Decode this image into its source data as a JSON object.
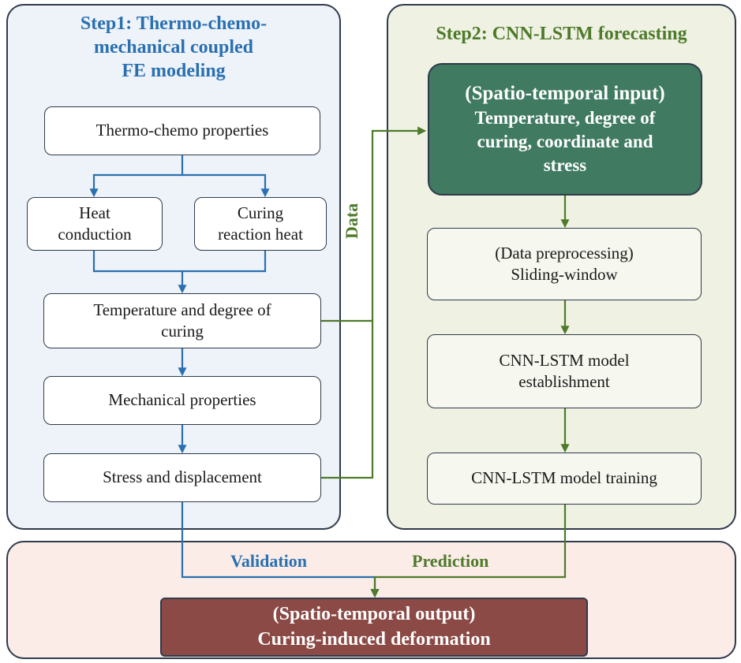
{
  "step1": {
    "title_lines": [
      "Step1: Thermo-chemo-",
      "mechanical coupled",
      "FE modeling"
    ],
    "boxes": {
      "props": [
        "Thermo-chemo properties"
      ],
      "heat": [
        "Heat",
        "conduction"
      ],
      "cure": [
        "Curing",
        "reaction heat"
      ],
      "temp": [
        "Temperature and degree of",
        "curing"
      ],
      "mech": [
        "Mechanical properties"
      ],
      "stress": [
        "Stress and displacement"
      ]
    }
  },
  "step2": {
    "title": "Step2: CNN-LSTM forecasting",
    "boxes": {
      "input": [
        "(Spatio-temporal input)",
        "Temperature, degree of",
        "curing, coordinate and",
        "stress"
      ],
      "pre": [
        "(Data preprocessing)",
        "Sliding-window"
      ],
      "est": [
        "CNN-LSTM model",
        "establishment"
      ],
      "train": [
        "CNN-LSTM model training"
      ]
    }
  },
  "output": {
    "lines": [
      "(Spatio-temporal output)",
      "Curing-induced deformation"
    ]
  },
  "labels": {
    "data": "Data",
    "validation": "Validation",
    "prediction": "Prediction"
  },
  "colors": {
    "blue": "#2a70b0",
    "green": "#4e7a2a",
    "input_box": "#3f7a61",
    "output_box": "#8b4a45"
  }
}
